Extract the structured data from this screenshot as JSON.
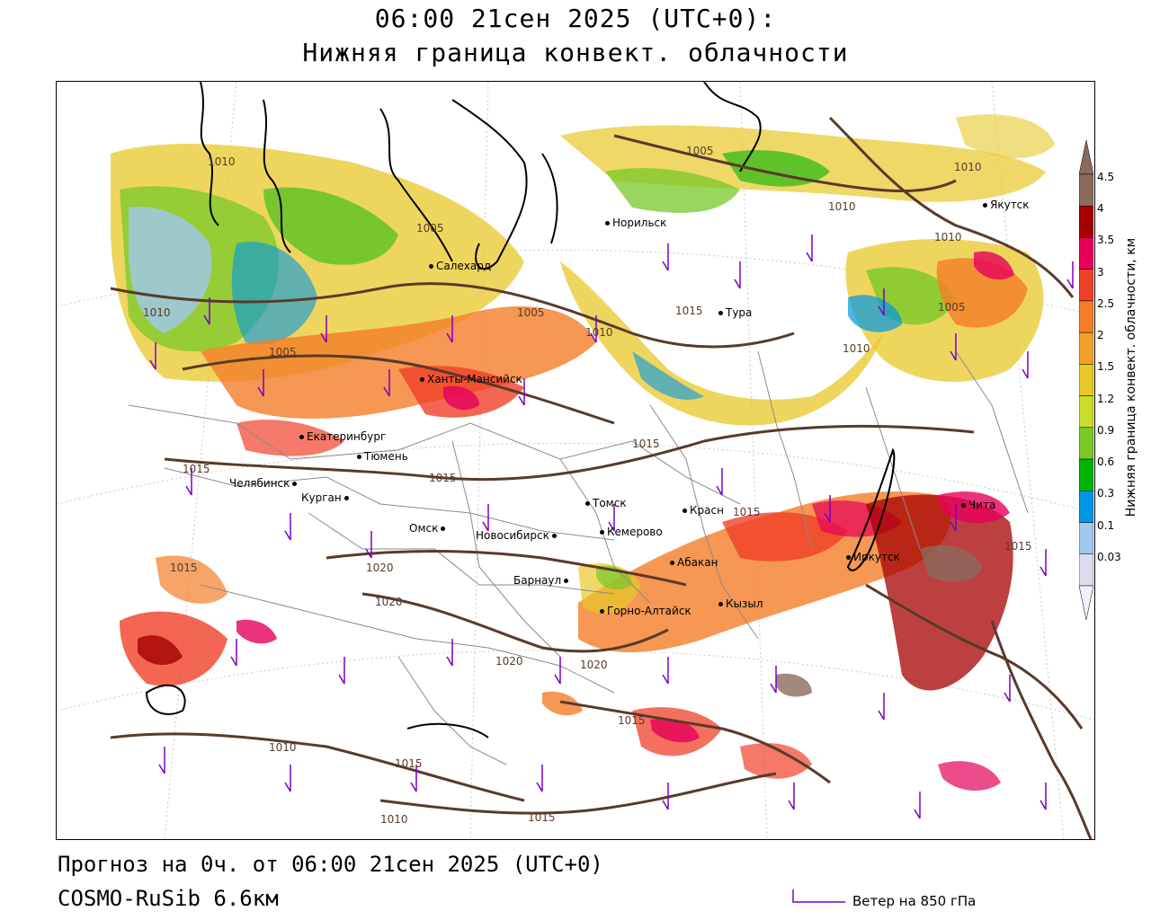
{
  "header": {
    "time_title": "06:00 21сен 2025 (UTC+0):",
    "param_title": "Нижняя граница конвект. облачности"
  },
  "footer": {
    "forecast_line": "Прогноз на 0ч. от 06:00 21сен 2025 (UTC+0)",
    "model_line": "COSMO-RuSib 6.6км",
    "wind_legend": "Ветер на 850 гПа"
  },
  "colorbar": {
    "title": "Нижняя граница конвект. облачности, км",
    "labels": [
      "4.5",
      "4",
      "3.5",
      "3",
      "2.5",
      "2",
      "1.5",
      "1.2",
      "0.9",
      "0.6",
      "0.3",
      "0.1",
      "0.03"
    ],
    "colors": [
      "#8c6a5c",
      "#a50000",
      "#e6005a",
      "#f04028",
      "#f47d28",
      "#f0a028",
      "#e8c828",
      "#c8dc28",
      "#78c828",
      "#00b400",
      "#0096e6",
      "#a0c8f0",
      "#dcdcf0"
    ]
  },
  "cities": [
    {
      "name": "Норильск"
    },
    {
      "name": "Якутск"
    },
    {
      "name": "Салехард"
    },
    {
      "name": "Тура"
    },
    {
      "name": "Ханты-Мансийск"
    },
    {
      "name": "Екатеринбург"
    },
    {
      "name": "Тюмень"
    },
    {
      "name": "Челябинск"
    },
    {
      "name": "Курган"
    },
    {
      "name": "Омск"
    },
    {
      "name": "Новосибирск"
    },
    {
      "name": "Томск"
    },
    {
      "name": "Кемерово"
    },
    {
      "name": "Красн"
    },
    {
      "name": "Абакан"
    },
    {
      "name": "Барнаул"
    },
    {
      "name": "Горно-Алтайск"
    },
    {
      "name": "Кызыл"
    },
    {
      "name": "Иркутск"
    },
    {
      "name": "Чита"
    }
  ],
  "isobars": [
    "1010",
    "1005",
    "1010",
    "1010",
    "1010",
    "1005",
    "1005",
    "1010",
    "1005",
    "1015",
    "1010",
    "1005",
    "1010",
    "1015",
    "1015",
    "1015",
    "1015",
    "1020",
    "1020",
    "1015",
    "1020",
    "1020",
    "1015",
    "1010",
    "1015",
    "1010",
    "1015",
    "1015"
  ]
}
